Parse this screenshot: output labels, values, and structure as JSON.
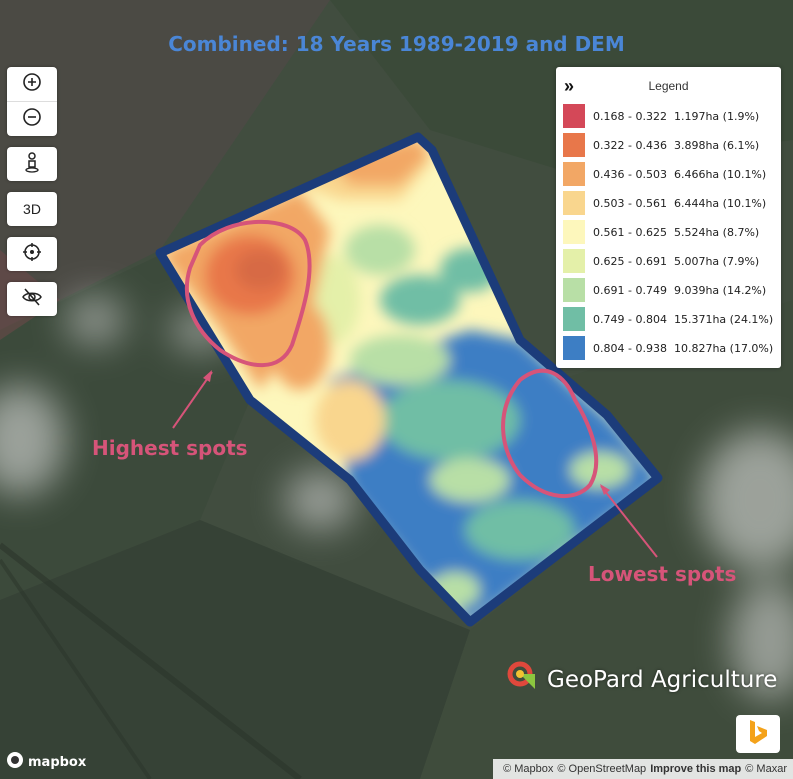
{
  "title": "Combined: 18 Years 1989-2019 and DEM",
  "controls": {
    "zoom_in_icon": "plus-circle-icon",
    "zoom_out_icon": "minus-circle-icon",
    "pegman_icon": "person-icon",
    "three_d_label": "3D",
    "locate_icon": "crosshair-icon",
    "hide_icon": "eye-off-icon"
  },
  "legend": {
    "toggle": "»",
    "title": "Legend",
    "items": [
      {
        "range": "0.168 - 0.322",
        "area": "1.197ha (1.9%)",
        "color": "#d44858"
      },
      {
        "range": "0.322 - 0.436",
        "area": "3.898ha (6.1%)",
        "color": "#e8774a"
      },
      {
        "range": "0.436 - 0.503",
        "area": "6.466ha (10.1%)",
        "color": "#f2a765"
      },
      {
        "range": "0.503 - 0.561",
        "area": "6.444ha (10.1%)",
        "color": "#f9d68e"
      },
      {
        "range": "0.561 - 0.625",
        "area": "5.524ha (8.7%)",
        "color": "#fdf7bc"
      },
      {
        "range": "0.625 - 0.691",
        "area": "5.007ha (7.9%)",
        "color": "#e4f0a9"
      },
      {
        "range": "0.691 - 0.749",
        "area": "9.039ha (14.2%)",
        "color": "#b8dfa6"
      },
      {
        "range": "0.749 - 0.804",
        "area": "15.371ha (24.1%)",
        "color": "#70bea5"
      },
      {
        "range": "0.804 - 0.938",
        "area": "10.827ha (17.0%)",
        "color": "#3d7ec4"
      }
    ]
  },
  "annotations": {
    "highest": "Highest spots",
    "lowest": "Lowest spots",
    "color": "#d65479"
  },
  "brand": "GeoPard Agriculture",
  "mapbox_logo": "mapbox",
  "attribution": {
    "mapbox": "© Mapbox",
    "osm": "© OpenStreetMap",
    "improve": "Improve this map",
    "maxar": "© Maxar"
  },
  "bing_icon": "bing-logo-icon"
}
